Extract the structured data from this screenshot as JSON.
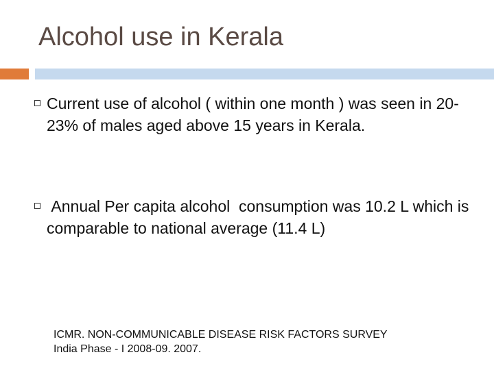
{
  "slide": {
    "title": "Alcohol use in Kerala",
    "accent_color": "#e07b39",
    "rule_color": "#c5d9ee"
  },
  "bullets": [
    {
      "icon": "square-bullet-icon",
      "text": "Current use of alcohol ( within one month ) was seen in 20-23% of males aged above 15 years in Kerala."
    },
    {
      "icon": "square-bullet-icon",
      "text": " Annual Per capita alcohol  consumption was 10.2 L which is comparable to national average (11.4 L)"
    }
  ],
  "citation": {
    "line1": "ICMR. NON-COMMUNICABLE DISEASE RISK FACTORS SURVEY",
    "line2": "India Phase - I 2008-09. 2007."
  }
}
